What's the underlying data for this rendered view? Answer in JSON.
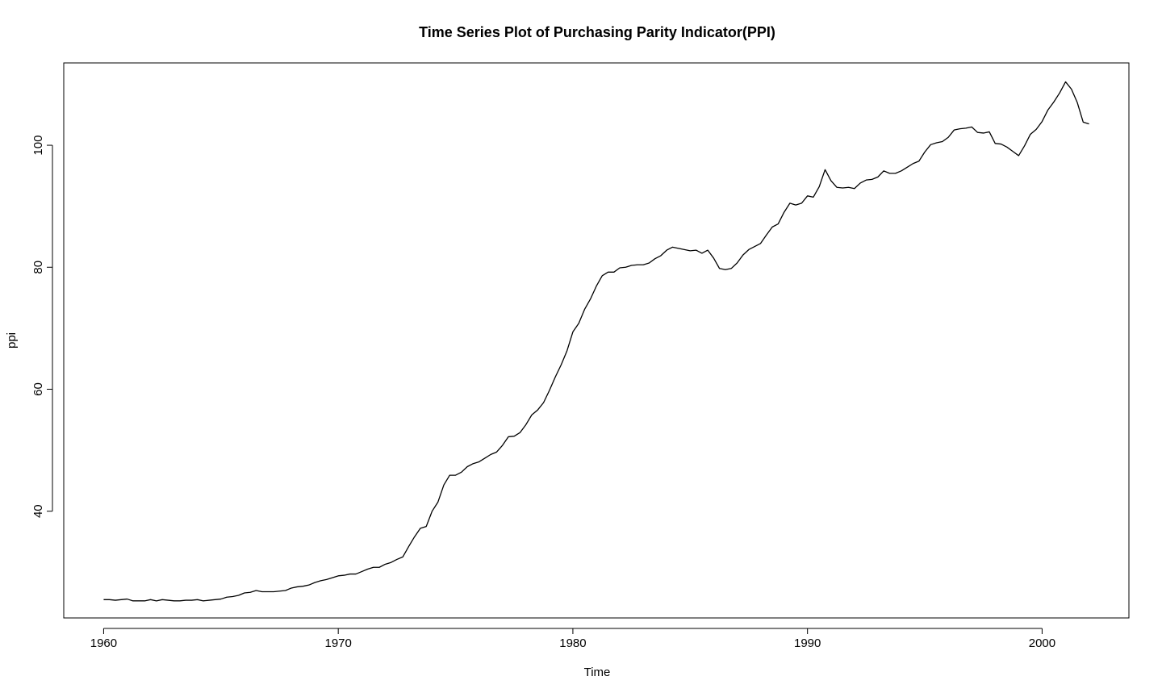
{
  "chart_data": {
    "type": "line",
    "title": "Time Series Plot of Purchasing Parity Indicator(PPI)",
    "xlabel": "Time",
    "ylabel": "ppi",
    "xlim": [
      1958.3,
      2003.7
    ],
    "ylim": [
      22.5,
      113.5
    ],
    "xticks": [
      1960,
      1970,
      1980,
      1990,
      2000
    ],
    "xtick_labels": [
      "1960",
      "1970",
      "1980",
      "1990",
      "2000"
    ],
    "yticks": [
      40,
      60,
      80,
      100
    ],
    "ytick_labels": [
      "40",
      "60",
      "80",
      "100"
    ],
    "grid": false,
    "legend": "none",
    "line_color": "#000000",
    "series": [
      {
        "x": [
          1960.0,
          1960.25,
          1960.5,
          1960.75,
          1961.0,
          1961.25,
          1961.5,
          1961.75,
          1962.0,
          1962.25,
          1962.5,
          1962.75,
          1963.0,
          1963.25,
          1963.5,
          1963.75,
          1964.0,
          1964.25,
          1964.5,
          1964.75,
          1965.0,
          1965.25,
          1965.5,
          1965.75,
          1966.0,
          1966.25,
          1966.5,
          1966.75,
          1967.0,
          1967.25,
          1967.5,
          1967.75,
          1968.0,
          1968.25,
          1968.5,
          1968.75,
          1969.0,
          1969.25,
          1969.5,
          1969.75,
          1970.0,
          1970.25,
          1970.5,
          1970.75,
          1971.0,
          1971.25,
          1971.5,
          1971.75,
          1972.0,
          1972.25,
          1972.5,
          1972.75,
          1973.0,
          1973.25,
          1973.5,
          1973.75,
          1974.0,
          1974.25,
          1974.5,
          1974.75,
          1975.0,
          1975.25,
          1975.5,
          1975.75,
          1976.0,
          1976.25,
          1976.5,
          1976.75,
          1977.0,
          1977.25,
          1977.5,
          1977.75,
          1978.0,
          1978.25,
          1978.5,
          1978.75,
          1979.0,
          1979.25,
          1979.5,
          1979.75,
          1980.0,
          1980.25,
          1980.5,
          1980.75,
          1981.0,
          1981.25,
          1981.5,
          1981.75,
          1982.0,
          1982.25,
          1982.5,
          1982.75,
          1983.0,
          1983.25,
          1983.5,
          1983.75,
          1984.0,
          1984.25,
          1984.5,
          1984.75,
          1985.0,
          1985.25,
          1985.5,
          1985.75,
          1986.0,
          1986.25,
          1986.5,
          1986.75,
          1987.0,
          1987.25,
          1987.5,
          1987.75,
          1988.0,
          1988.25,
          1988.5,
          1988.75,
          1989.0,
          1989.25,
          1989.5,
          1989.75,
          1990.0,
          1990.25,
          1990.5,
          1990.75,
          1991.0,
          1991.25,
          1991.5,
          1991.75,
          1992.0,
          1992.25,
          1992.5,
          1992.75,
          1993.0,
          1993.25,
          1993.5,
          1993.75,
          1994.0,
          1994.25,
          1994.5,
          1994.75,
          1995.0,
          1995.25,
          1995.5,
          1995.75,
          1996.0,
          1996.25,
          1996.5,
          1996.75,
          1997.0,
          1997.25,
          1997.5,
          1997.75,
          1998.0,
          1998.25,
          1998.5,
          1998.75,
          1999.0,
          1999.25,
          1999.5,
          1999.75,
          2000.0,
          2000.25,
          2000.5,
          2000.75,
          2001.0,
          2001.25,
          2001.5,
          2001.75,
          2002.0
        ],
        "values": [
          25.5,
          25.5,
          25.4,
          25.5,
          25.6,
          25.3,
          25.3,
          25.3,
          25.5,
          25.3,
          25.5,
          25.4,
          25.3,
          25.3,
          25.4,
          25.4,
          25.5,
          25.3,
          25.4,
          25.5,
          25.6,
          25.9,
          26.0,
          26.2,
          26.6,
          26.7,
          27.0,
          26.8,
          26.8,
          26.8,
          26.9,
          27.0,
          27.4,
          27.6,
          27.7,
          27.9,
          28.3,
          28.6,
          28.8,
          29.1,
          29.4,
          29.5,
          29.7,
          29.7,
          30.1,
          30.5,
          30.8,
          30.8,
          31.3,
          31.6,
          32.1,
          32.5,
          34.2,
          35.8,
          37.2,
          37.5,
          40.0,
          41.5,
          44.3,
          45.9,
          45.9,
          46.4,
          47.3,
          47.8,
          48.1,
          48.7,
          49.3,
          49.7,
          50.8,
          52.2,
          52.3,
          52.9,
          54.2,
          55.8,
          56.6,
          57.8,
          59.8,
          62.0,
          64.0,
          66.3,
          69.4,
          70.8,
          73.1,
          74.8,
          76.9,
          78.6,
          79.2,
          79.2,
          79.9,
          80.0,
          80.3,
          80.4,
          80.4,
          80.7,
          81.4,
          81.9,
          82.8,
          83.3,
          83.1,
          82.9,
          82.7,
          82.8,
          82.3,
          82.8,
          81.5,
          79.8,
          79.6,
          79.8,
          80.7,
          82.0,
          82.9,
          83.4,
          83.9,
          85.3,
          86.6,
          87.1,
          89.0,
          90.5,
          90.2,
          90.5,
          91.7,
          91.5,
          93.2,
          96.0,
          94.2,
          93.1,
          93.0,
          93.1,
          92.9,
          93.8,
          94.3,
          94.4,
          94.8,
          95.8,
          95.4,
          95.4,
          95.8,
          96.4,
          97.0,
          97.4,
          98.9,
          100.1,
          100.4,
          100.6,
          101.3,
          102.5,
          102.7,
          102.8,
          103.0,
          102.1,
          102.0,
          102.2,
          100.3,
          100.2,
          99.7,
          99.0,
          98.3,
          99.9,
          101.8,
          102.6,
          103.9,
          105.8,
          107.1,
          108.6,
          110.4,
          109.2,
          107.0,
          103.8,
          103.5
        ]
      }
    ]
  }
}
